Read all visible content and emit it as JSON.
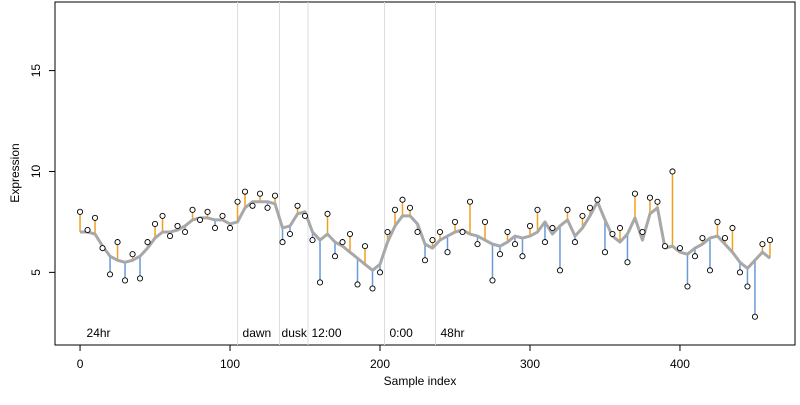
{
  "chart_data": {
    "type": "scatter",
    "xlabel": "Sample index",
    "ylabel": "Expression",
    "xlim": [
      -16.7,
      476.7
    ],
    "ylim": [
      1.4,
      18.4
    ],
    "xticks": [
      0,
      100,
      200,
      300,
      400
    ],
    "yticks": [
      5,
      10,
      15
    ],
    "point_color": "#000000",
    "above_color": "#f0a020",
    "below_color": "#6a9ad8",
    "trend_color": "#a8a8a8",
    "vline_color": "#dddddd",
    "vlines": [
      105,
      133,
      152,
      203,
      237
    ],
    "annotations": [
      {
        "x": 3,
        "text": "24hr"
      },
      {
        "x": 107,
        "text": "dawn"
      },
      {
        "x": 133,
        "text": "dusk"
      },
      {
        "x": 153,
        "text": "12:00"
      },
      {
        "x": 205,
        "text": "0:00"
      },
      {
        "x": 239,
        "text": "48hr"
      }
    ],
    "x": [
      0,
      5,
      10,
      15,
      20,
      25,
      30,
      35,
      40,
      45,
      50,
      55,
      60,
      65,
      70,
      75,
      80,
      85,
      90,
      95,
      100,
      105,
      110,
      115,
      120,
      125,
      130,
      135,
      140,
      145,
      150,
      155,
      160,
      165,
      170,
      175,
      180,
      185,
      190,
      195,
      200,
      205,
      210,
      215,
      220,
      225,
      230,
      235,
      240,
      245,
      250,
      255,
      260,
      265,
      270,
      275,
      280,
      285,
      290,
      295,
      300,
      305,
      310,
      315,
      320,
      325,
      330,
      335,
      340,
      345,
      350,
      355,
      360,
      365,
      370,
      375,
      380,
      385,
      390,
      395,
      400,
      405,
      410,
      415,
      420,
      425,
      430,
      435,
      440,
      445,
      450,
      455,
      460
    ],
    "values": [
      8.0,
      7.1,
      7.7,
      6.2,
      4.9,
      6.5,
      4.6,
      5.9,
      4.7,
      6.5,
      7.4,
      7.8,
      6.8,
      7.3,
      7.0,
      8.1,
      7.6,
      8.0,
      7.2,
      7.8,
      7.2,
      8.5,
      9.0,
      8.3,
      8.9,
      8.2,
      8.8,
      6.5,
      6.9,
      8.3,
      7.8,
      6.6,
      4.5,
      7.9,
      5.8,
      6.5,
      6.9,
      4.4,
      6.3,
      4.2,
      5.0,
      7.0,
      8.1,
      8.6,
      8.2,
      7.0,
      5.6,
      6.6,
      7.0,
      6.0,
      7.5,
      7.0,
      8.5,
      6.4,
      7.5,
      4.6,
      5.9,
      7.0,
      6.4,
      5.8,
      7.3,
      8.1,
      6.5,
      7.2,
      5.1,
      8.1,
      6.5,
      7.8,
      8.2,
      8.6,
      6.0,
      6.9,
      7.2,
      5.5,
      8.9,
      7.0,
      8.7,
      8.5,
      6.3,
      10.0,
      6.2,
      4.3,
      5.8,
      6.7,
      5.1,
      7.5,
      6.7,
      7.2,
      5.0,
      4.3,
      2.8,
      6.4,
      6.6
    ],
    "trend": [
      7.0,
      7.0,
      6.9,
      6.3,
      5.8,
      5.6,
      5.5,
      5.6,
      5.8,
      6.2,
      6.7,
      7.0,
      7.0,
      7.1,
      7.3,
      7.6,
      7.7,
      7.7,
      7.6,
      7.6,
      7.4,
      7.5,
      8.2,
      8.5,
      8.5,
      8.5,
      8.4,
      7.2,
      7.3,
      7.9,
      8.0,
      7.0,
      6.6,
      6.9,
      6.5,
      6.3,
      6.0,
      5.7,
      5.4,
      5.1,
      5.4,
      6.5,
      7.3,
      7.8,
      7.8,
      7.4,
      6.4,
      6.2,
      6.6,
      6.8,
      7.0,
      7.1,
      6.9,
      6.8,
      6.6,
      6.4,
      6.3,
      6.5,
      6.8,
      6.7,
      6.8,
      7.0,
      7.5,
      6.9,
      7.3,
      7.6,
      6.8,
      7.2,
      7.8,
      8.5,
      7.6,
      6.8,
      6.5,
      6.9,
      7.7,
      6.6,
      7.9,
      8.2,
      6.2,
      6.3,
      6.0,
      5.9,
      6.2,
      6.4,
      6.7,
      6.8,
      6.4,
      6.0,
      5.5,
      5.2,
      5.6,
      6.0,
      5.7
    ]
  }
}
